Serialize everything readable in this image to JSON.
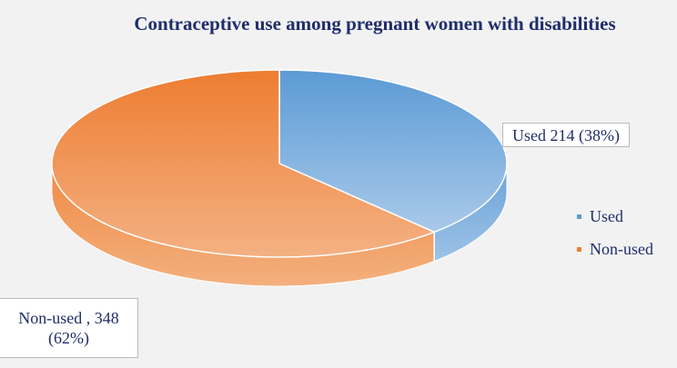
{
  "chart_data": {
    "type": "pie",
    "title": "Contraceptive use among pregnant women with disabilities",
    "categories": [
      "Used",
      "Non-used"
    ],
    "values": [
      214,
      348
    ],
    "percents": [
      38,
      62
    ],
    "colors": [
      "#5b9bd5",
      "#ed7d31"
    ],
    "data_labels": [
      "Used 214 (38%)",
      "Non-used , 348 (62%)"
    ],
    "data_label_lines": {
      "used": "Used 214 (38%)",
      "nonused_line1": "Non-used , 348",
      "nonused_line2": "(62%)"
    },
    "legend": {
      "position": "right",
      "items": [
        {
          "label": "Used",
          "color": "#5b9bd5"
        },
        {
          "label": "Non-used",
          "color": "#ed7d31"
        }
      ]
    }
  }
}
